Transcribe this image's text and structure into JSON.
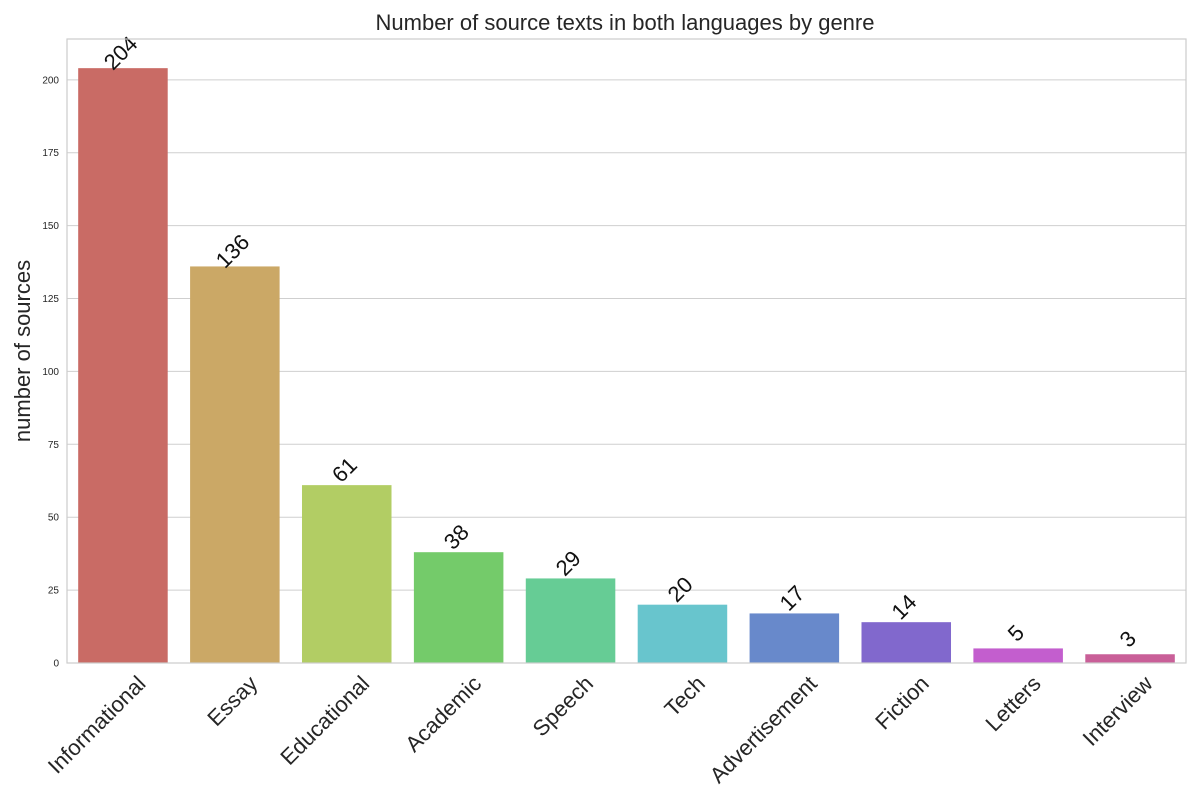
{
  "chart_data": {
    "type": "bar",
    "title": "Number of source texts in both languages by genre",
    "xlabel": "",
    "ylabel": "number of sources",
    "categories": [
      "Informational",
      "Essay",
      "Educational",
      "Academic",
      "Speech",
      "Tech",
      "Advertisement",
      "Fiction",
      "Letters",
      "Interview"
    ],
    "values": [
      204,
      136,
      61,
      38,
      29,
      20,
      17,
      14,
      5,
      3
    ],
    "data_labels": [
      "204",
      "136",
      "61",
      "38",
      "29",
      "20",
      "17",
      "14",
      "5",
      "3"
    ],
    "ylim": [
      0,
      214
    ],
    "yticks": [
      0,
      25,
      50,
      75,
      100,
      125,
      150,
      175,
      200
    ],
    "colors": [
      "#c96b65",
      "#cba866",
      "#b2cd64",
      "#74cb6a",
      "#66cc95",
      "#68c5cd",
      "#6889cb",
      "#8168cd",
      "#c35ece",
      "#c95f98"
    ],
    "grid": "horizontal",
    "legend": "none"
  }
}
